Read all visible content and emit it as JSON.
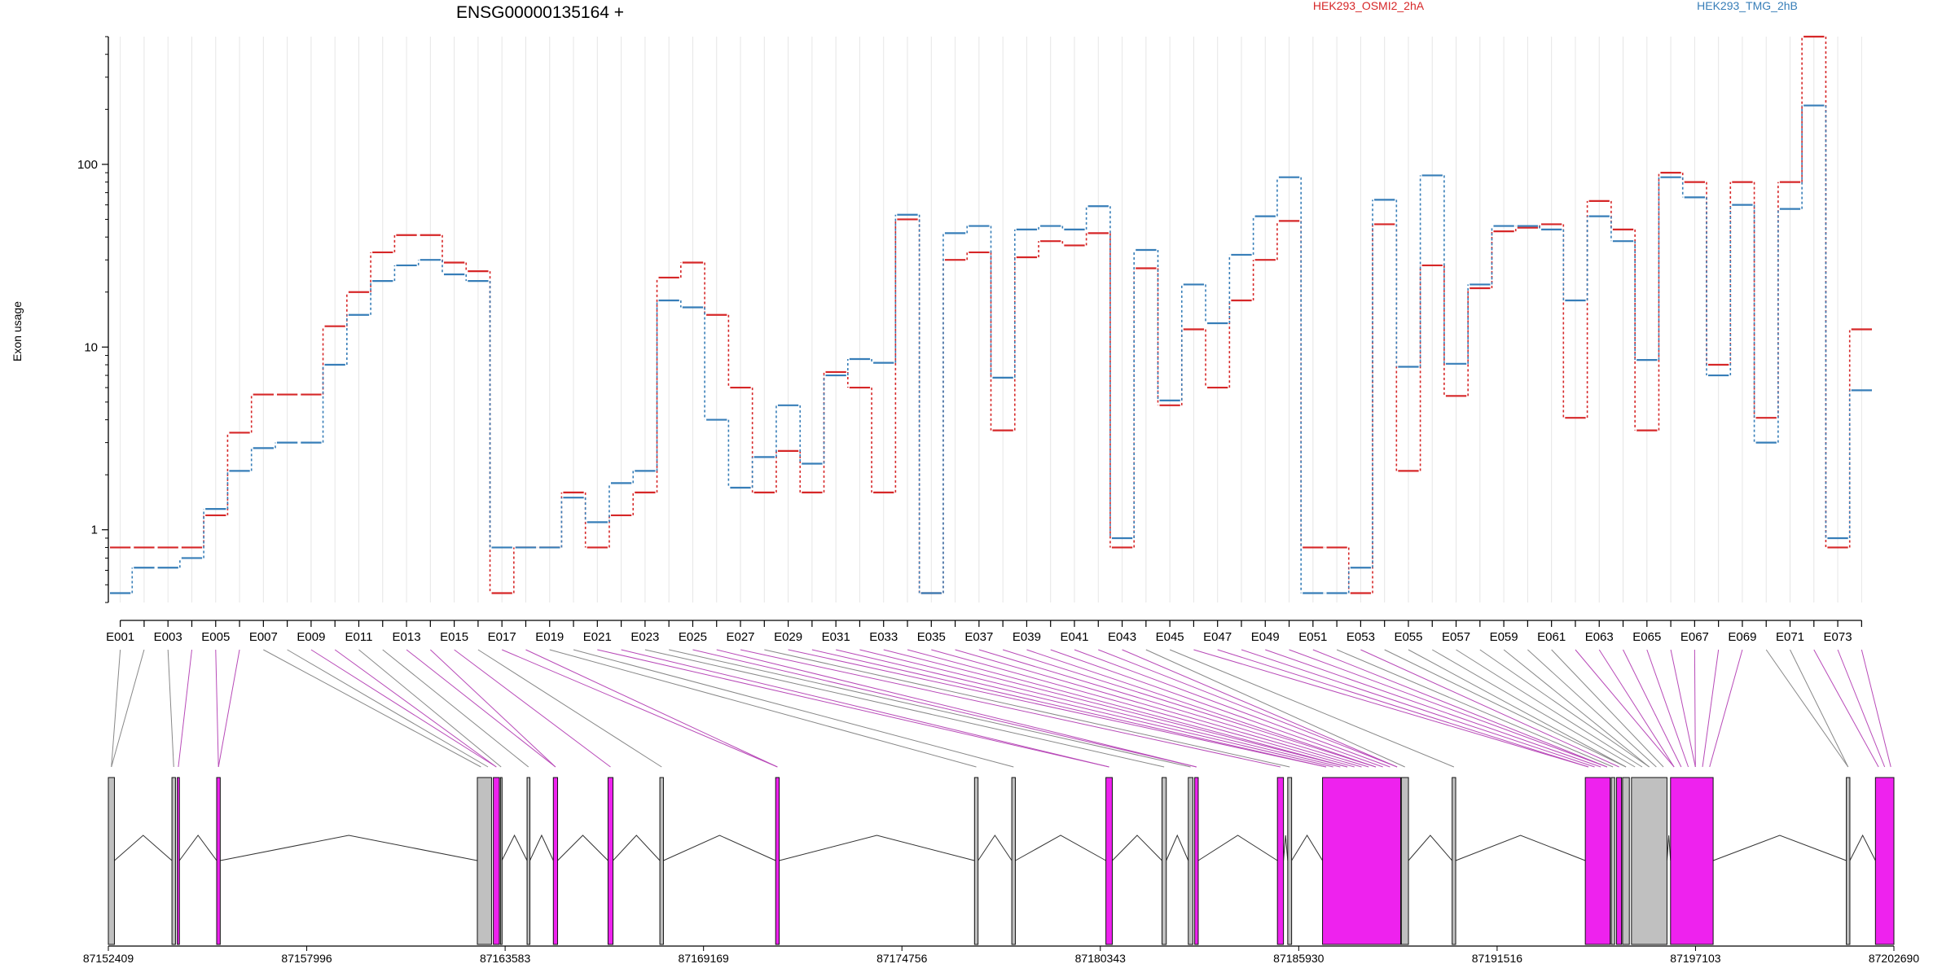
{
  "title": "ENSG00000135164 +",
  "legend": [
    {
      "label": "HEK293_OSMI2_2hA",
      "color": "#d62728"
    },
    {
      "label": "HEK293_TMG_2hB",
      "color": "#377eb8"
    }
  ],
  "y_axis_label": "Exon usage",
  "chart_data": {
    "type": "line",
    "title": "ENSG00000135164 +",
    "ylabel": "Exon usage",
    "yscale": "log",
    "ylim": [
      0.4,
      500
    ],
    "yticks": [
      1,
      10,
      100
    ],
    "ytick_labels": [
      "1",
      "10",
      "100"
    ],
    "legend_position": "top",
    "categories": [
      "E001",
      "E002",
      "E003",
      "E004",
      "E005",
      "E006",
      "E007",
      "E008",
      "E009",
      "E010",
      "E011",
      "E012",
      "E013",
      "E014",
      "E015",
      "E016",
      "E017",
      "E018",
      "E019",
      "E020",
      "E021",
      "E022",
      "E023",
      "E024",
      "E025",
      "E026",
      "E027",
      "E028",
      "E029",
      "E030",
      "E031",
      "E032",
      "E033",
      "E034",
      "E035",
      "E036",
      "E037",
      "E038",
      "E039",
      "E040",
      "E041",
      "E042",
      "E043",
      "E044",
      "E045",
      "E046",
      "E047",
      "E048",
      "E049",
      "E050",
      "E051",
      "E052",
      "E053",
      "E054",
      "E055",
      "E056",
      "E057",
      "E058",
      "E059",
      "E060",
      "E061",
      "E062",
      "E063",
      "E064",
      "E065",
      "E066",
      "E067",
      "E068",
      "E069",
      "E070",
      "E071",
      "E072",
      "E073",
      "E074"
    ],
    "tick_labels_shown": [
      "E001",
      "E003",
      "E005",
      "E007",
      "E009",
      "E011",
      "E013",
      "E015",
      "E017",
      "E019",
      "E021",
      "E023",
      "E025",
      "E027",
      "E029",
      "E031",
      "E033",
      "E035",
      "E037",
      "E039",
      "E041",
      "E043",
      "E045",
      "E047",
      "E049",
      "E051",
      "E053",
      "E055",
      "E057",
      "E059",
      "E061",
      "E063",
      "E065",
      "E067",
      "E069",
      "E071",
      "E073"
    ],
    "series": [
      {
        "name": "HEK293_OSMI2_2hA",
        "color": "#d62728",
        "values": [
          0.8,
          0.8,
          0.8,
          0.8,
          1.2,
          3.4,
          5.5,
          5.5,
          5.5,
          13,
          20,
          33,
          41,
          41,
          29,
          26,
          0.45,
          0.8,
          0.8,
          1.6,
          0.8,
          1.2,
          1.6,
          24,
          29,
          15,
          6,
          1.6,
          2.7,
          1.6,
          7.3,
          6,
          1.6,
          50,
          0.45,
          30,
          33,
          3.5,
          31,
          38,
          36,
          42,
          0.8,
          27,
          4.8,
          12.5,
          6,
          18,
          30,
          49,
          0.8,
          0.8,
          0.45,
          47,
          2.1,
          28,
          5.4,
          21,
          43,
          45,
          47,
          4.1,
          63,
          44,
          3.5,
          90,
          80,
          8,
          80,
          4.1,
          80,
          500,
          0.8,
          12.5
        ]
      },
      {
        "name": "HEK293_TMG_2hB",
        "color": "#377eb8",
        "values": [
          0.45,
          0.62,
          0.62,
          0.7,
          1.3,
          2.1,
          2.8,
          3,
          3,
          8,
          15,
          23,
          28,
          30,
          25,
          23,
          0.8,
          0.8,
          0.8,
          1.5,
          1.1,
          1.8,
          2.1,
          18,
          16.5,
          4,
          1.7,
          2.5,
          4.8,
          2.3,
          7,
          8.6,
          8.2,
          53,
          0.45,
          42,
          46,
          6.8,
          44,
          46,
          44,
          59,
          0.9,
          34,
          5.1,
          22,
          13.5,
          32,
          52,
          85,
          0.45,
          0.45,
          0.62,
          64,
          7.8,
          87,
          8.1,
          22,
          46,
          46,
          44,
          18,
          52,
          38,
          8.5,
          85,
          66,
          7,
          60,
          3,
          57,
          210,
          0.9,
          5.8
        ]
      }
    ],
    "genomic_axis": {
      "labels": [
        "87152409",
        "87157996",
        "87163583",
        "87169169",
        "87174756",
        "87180343",
        "87185930",
        "87191516",
        "87197103",
        "87202690"
      ],
      "start": 87152409,
      "end": 87202690
    },
    "gene_model": {
      "exon_color": "#c0c0c0",
      "highlight_color": "#ee22ee",
      "exons": [
        {
          "start": 87152409,
          "end": 87152580,
          "highlight": false
        },
        {
          "start": 87154200,
          "end": 87154300,
          "highlight": false
        },
        {
          "start": 87154350,
          "end": 87154410,
          "highlight": true
        },
        {
          "start": 87155460,
          "end": 87155560,
          "highlight": true
        },
        {
          "start": 87162800,
          "end": 87163200,
          "highlight": false
        },
        {
          "start": 87163250,
          "end": 87163420,
          "highlight": true
        },
        {
          "start": 87163450,
          "end": 87163490,
          "highlight": false
        },
        {
          "start": 87164200,
          "end": 87164280,
          "highlight": false
        },
        {
          "start": 87164940,
          "end": 87165060,
          "highlight": true
        },
        {
          "start": 87166480,
          "end": 87166620,
          "highlight": true
        },
        {
          "start": 87167940,
          "end": 87168040,
          "highlight": false
        },
        {
          "start": 87171200,
          "end": 87171300,
          "highlight": true
        },
        {
          "start": 87176800,
          "end": 87176900,
          "highlight": false
        },
        {
          "start": 87177850,
          "end": 87177950,
          "highlight": false
        },
        {
          "start": 87180500,
          "end": 87180680,
          "highlight": true
        },
        {
          "start": 87182080,
          "end": 87182200,
          "highlight": false
        },
        {
          "start": 87182820,
          "end": 87182950,
          "highlight": false
        },
        {
          "start": 87183000,
          "end": 87183100,
          "highlight": true
        },
        {
          "start": 87185330,
          "end": 87185500,
          "highlight": true
        },
        {
          "start": 87185620,
          "end": 87185730,
          "highlight": false
        },
        {
          "start": 87186600,
          "end": 87188800,
          "highlight": true
        },
        {
          "start": 87188820,
          "end": 87189020,
          "highlight": false
        },
        {
          "start": 87190250,
          "end": 87190350,
          "highlight": false
        },
        {
          "start": 87194000,
          "end": 87194700,
          "highlight": true
        },
        {
          "start": 87194730,
          "end": 87194830,
          "highlight": false
        },
        {
          "start": 87194880,
          "end": 87195020,
          "highlight": true
        },
        {
          "start": 87195050,
          "end": 87195240,
          "highlight": false
        },
        {
          "start": 87195300,
          "end": 87196300,
          "highlight": false
        },
        {
          "start": 87196400,
          "end": 87197600,
          "highlight": true
        },
        {
          "start": 87201350,
          "end": 87201450,
          "highlight": false
        },
        {
          "start": 87202170,
          "end": 87202690,
          "highlight": true
        }
      ]
    }
  }
}
